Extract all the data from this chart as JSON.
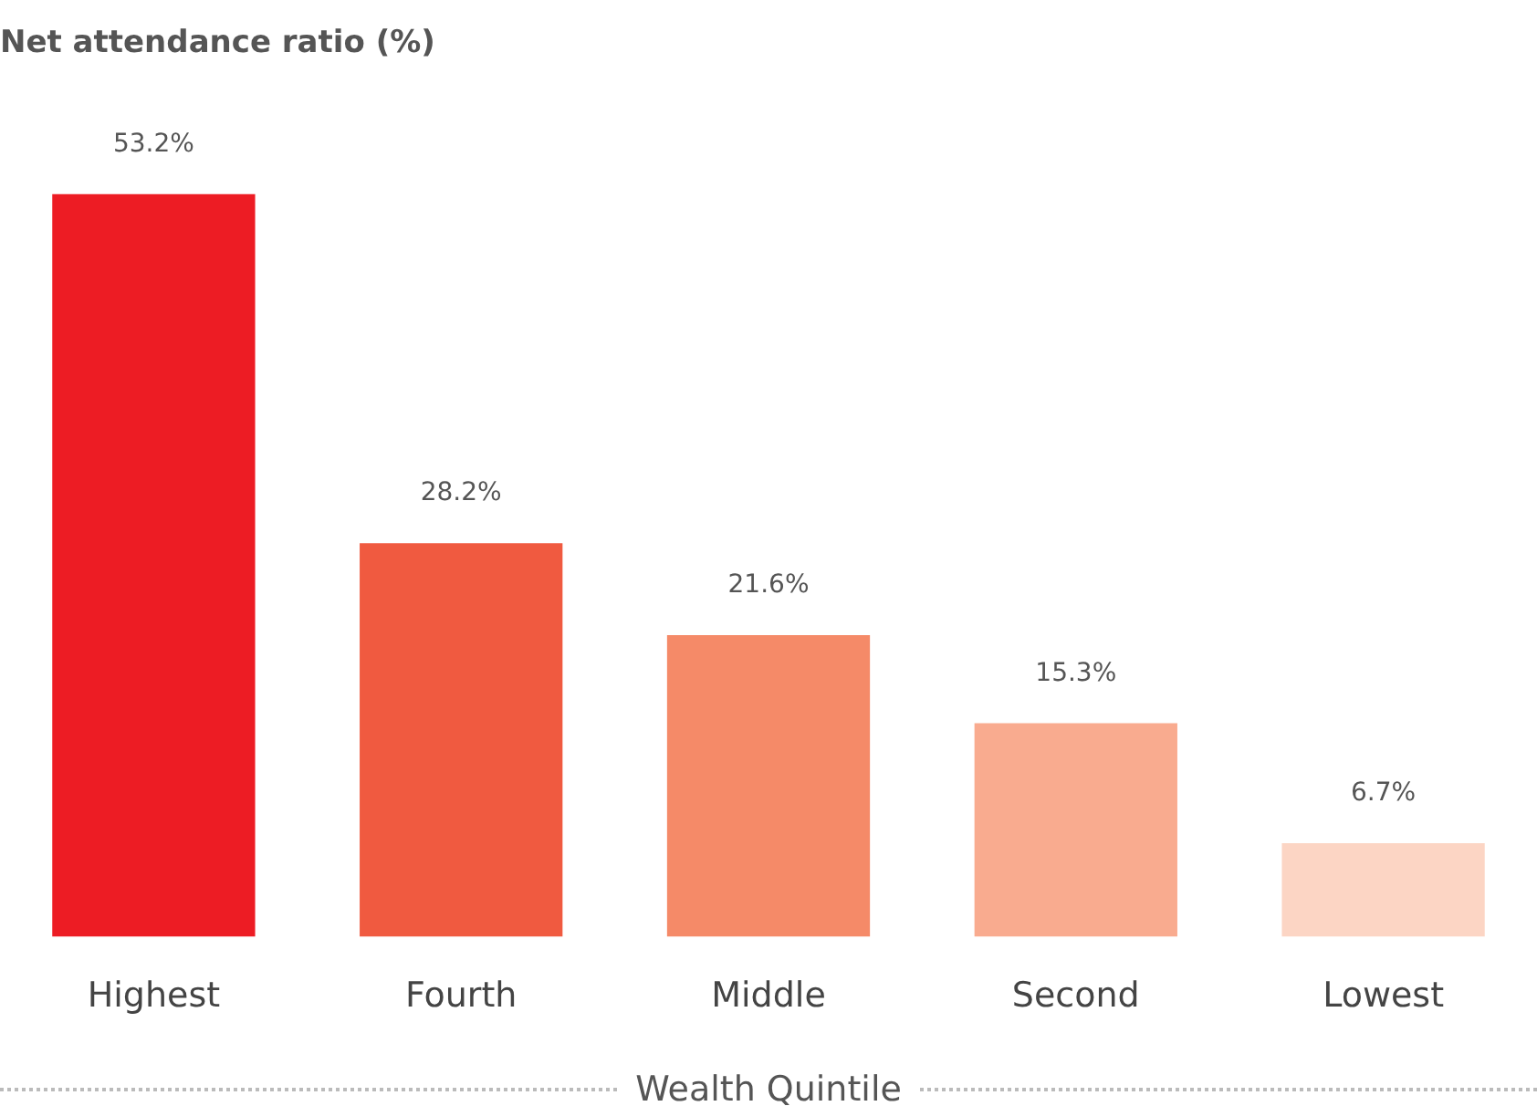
{
  "chart_data": {
    "type": "bar",
    "title": "Net attendance ratio (%)",
    "xlabel": "Wealth Quintile",
    "categories": [
      "Highest",
      "Fourth",
      "Middle",
      "Second",
      "Lowest"
    ],
    "values": [
      53.2,
      28.2,
      21.6,
      15.3,
      6.7
    ],
    "colors": [
      "#ed1c24",
      "#f05a40",
      "#f58a68",
      "#f9ab8f",
      "#fcd5c4"
    ],
    "value_labels": [
      "53.2%",
      "28.2%",
      "21.6%",
      "15.3%",
      "6.7%"
    ],
    "grid": false,
    "legend": false
  }
}
